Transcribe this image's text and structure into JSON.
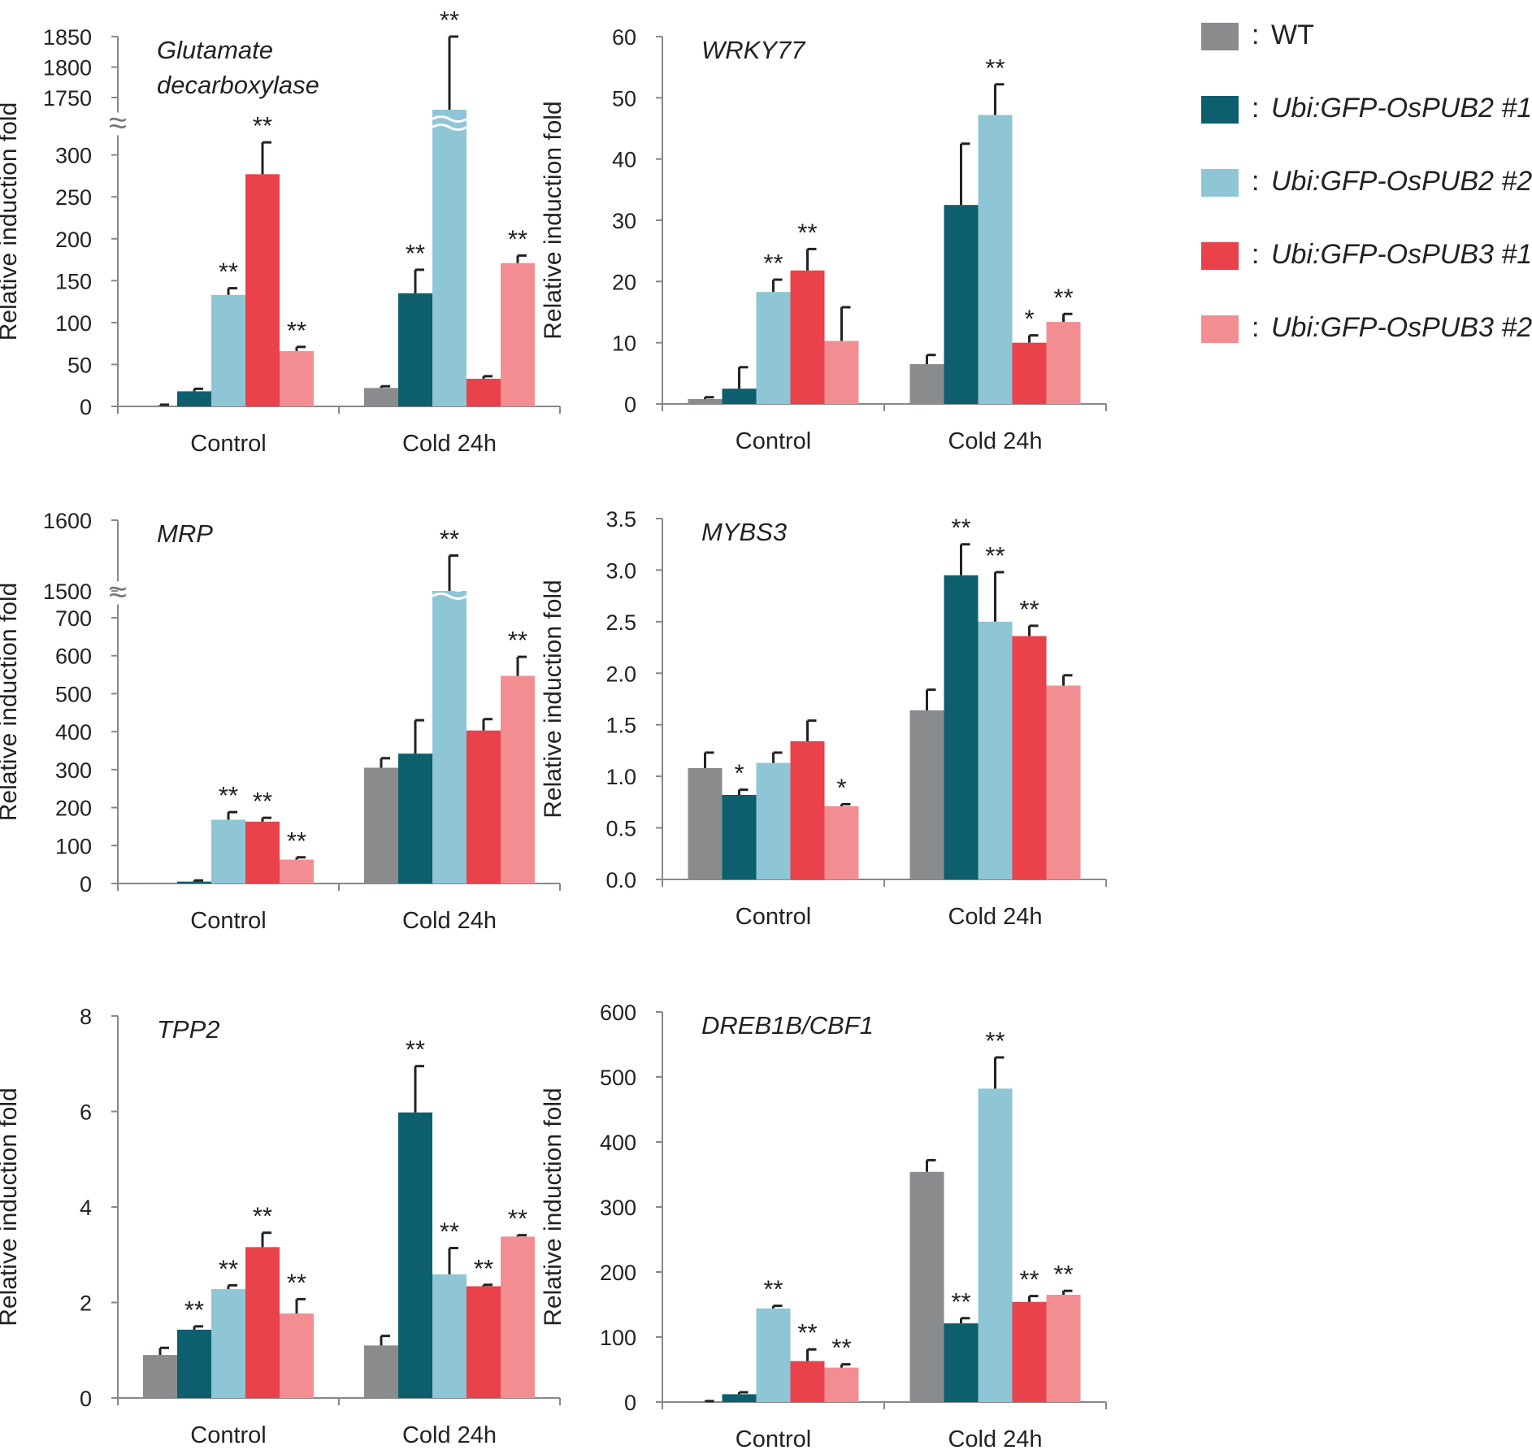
{
  "legend": {
    "colon": ":",
    "items": [
      {
        "label": "WT",
        "italic": false,
        "color": "#8a8b8d"
      },
      {
        "label": "Ubi:GFP-OsPUB2 #1",
        "italic": true,
        "color": "#0e5f6e"
      },
      {
        "label": "Ubi:GFP-OsPUB2 #2",
        "italic": true,
        "color": "#8ec6d6"
      },
      {
        "label": "Ubi:GFP-OsPUB3 #1",
        "italic": true,
        "color": "#e9424a"
      },
      {
        "label": "Ubi:GFP-OsPUB3 #2",
        "italic": true,
        "color": "#f28e92"
      }
    ]
  },
  "break_symbol": "≈",
  "chart_data": [
    {
      "type": "bar",
      "title": "Glutamate decarboxylase",
      "title_lines": [
        "Glutamate",
        "decarboxylase"
      ],
      "ylabel": "Relative induction fold",
      "xlabel": "",
      "categories": [
        "Control",
        "Cold 24h"
      ],
      "ylim": [
        0,
        1850
      ],
      "axis_break": [
        320,
        1730
      ],
      "yticks": [
        0,
        50,
        100,
        150,
        200,
        250,
        300,
        1750,
        1800,
        1850
      ],
      "series": [
        {
          "name": "WT",
          "values": [
            1,
            22
          ],
          "errors": [
            1,
            2
          ],
          "sig": [
            "",
            ""
          ]
        },
        {
          "name": "Ubi:GFP-OsPUB2 #1",
          "values": [
            18,
            135
          ],
          "errors": [
            3,
            28
          ],
          "sig": [
            "",
            "**"
          ]
        },
        {
          "name": "Ubi:GFP-OsPUB2 #2",
          "values": [
            133,
            1730
          ],
          "errors": [
            8,
            120
          ],
          "sig": [
            "**",
            "**"
          ]
        },
        {
          "name": "Ubi:GFP-OsPUB3 #1",
          "values": [
            277,
            33
          ],
          "errors": [
            38,
            3
          ],
          "sig": [
            "**",
            ""
          ]
        },
        {
          "name": "Ubi:GFP-OsPUB3 #2",
          "values": [
            66,
            171
          ],
          "errors": [
            5,
            9
          ],
          "sig": [
            "**",
            "**"
          ]
        }
      ]
    },
    {
      "type": "bar",
      "title": "WRKY77",
      "title_lines": [
        "WRKY77"
      ],
      "ylabel": "Relative induction fold",
      "xlabel": "",
      "categories": [
        "Control",
        "Cold 24h"
      ],
      "ylim": [
        0,
        60
      ],
      "yticks": [
        0,
        10,
        20,
        30,
        40,
        50,
        60
      ],
      "series": [
        {
          "name": "WT",
          "values": [
            0.8,
            6.5
          ],
          "errors": [
            0.3,
            1.5
          ],
          "sig": [
            "",
            ""
          ]
        },
        {
          "name": "Ubi:GFP-OsPUB2 #1",
          "values": [
            2.5,
            32.5
          ],
          "errors": [
            3.5,
            10
          ],
          "sig": [
            "",
            ""
          ]
        },
        {
          "name": "Ubi:GFP-OsPUB2 #2",
          "values": [
            18.3,
            47.2
          ],
          "errors": [
            2,
            5
          ],
          "sig": [
            "**",
            "**"
          ]
        },
        {
          "name": "Ubi:GFP-OsPUB3 #1",
          "values": [
            21.8,
            10
          ],
          "errors": [
            3.5,
            1.2
          ],
          "sig": [
            "**",
            "*"
          ]
        },
        {
          "name": "Ubi:GFP-OsPUB3 #2",
          "values": [
            10.3,
            13.4
          ],
          "errors": [
            5.5,
            1.3
          ],
          "sig": [
            "",
            "**"
          ]
        }
      ]
    },
    {
      "type": "bar",
      "title": "MRP",
      "title_lines": [
        "MRP"
      ],
      "ylabel": "Relative induction fold",
      "xlabel": "",
      "categories": [
        "Control",
        "Cold 24h"
      ],
      "ylim": [
        0,
        1600
      ],
      "axis_break": [
        760,
        1500
      ],
      "yticks": [
        0,
        100,
        200,
        300,
        400,
        500,
        600,
        700,
        1500,
        1600
      ],
      "series": [
        {
          "name": "WT",
          "values": [
            0,
            305
          ],
          "errors": [
            0,
            25
          ],
          "sig": [
            "",
            ""
          ]
        },
        {
          "name": "Ubi:GFP-OsPUB2 #1",
          "values": [
            5,
            342
          ],
          "errors": [
            3,
            88
          ],
          "sig": [
            "",
            ""
          ]
        },
        {
          "name": "Ubi:GFP-OsPUB2 #2",
          "values": [
            168,
            1500
          ],
          "errors": [
            20,
            50
          ],
          "sig": [
            "**",
            "**"
          ]
        },
        {
          "name": "Ubi:GFP-OsPUB3 #1",
          "values": [
            163,
            403
          ],
          "errors": [
            10,
            30
          ],
          "sig": [
            "**",
            ""
          ]
        },
        {
          "name": "Ubi:GFP-OsPUB3 #2",
          "values": [
            63,
            547
          ],
          "errors": [
            6,
            50
          ],
          "sig": [
            "**",
            "**"
          ]
        }
      ]
    },
    {
      "type": "bar",
      "title": "MYBS3",
      "title_lines": [
        "MYBS3"
      ],
      "ylabel": "Relative induction fold",
      "xlabel": "",
      "categories": [
        "Control",
        "Cold 24h"
      ],
      "ylim": [
        0,
        3.5
      ],
      "yticks": [
        0.0,
        0.5,
        1.0,
        1.5,
        2.0,
        2.5,
        3.0,
        3.5
      ],
      "tick_decimals": 1,
      "series": [
        {
          "name": "WT",
          "values": [
            1.08,
            1.64
          ],
          "errors": [
            0.15,
            0.2
          ],
          "sig": [
            "",
            ""
          ]
        },
        {
          "name": "Ubi:GFP-OsPUB2 #1",
          "values": [
            0.82,
            2.95
          ],
          "errors": [
            0.05,
            0.3
          ],
          "sig": [
            "*",
            "**"
          ]
        },
        {
          "name": "Ubi:GFP-OsPUB2 #2",
          "values": [
            1.13,
            2.5
          ],
          "errors": [
            0.1,
            0.48
          ],
          "sig": [
            "",
            "**"
          ]
        },
        {
          "name": "Ubi:GFP-OsPUB3 #1",
          "values": [
            1.34,
            2.36
          ],
          "errors": [
            0.2,
            0.1
          ],
          "sig": [
            "",
            "**"
          ]
        },
        {
          "name": "Ubi:GFP-OsPUB3 #2",
          "values": [
            0.71,
            1.88
          ],
          "errors": [
            0.02,
            0.1
          ],
          "sig": [
            "*",
            ""
          ]
        }
      ]
    },
    {
      "type": "bar",
      "title": "TPP2",
      "title_lines": [
        "TPP2"
      ],
      "ylabel": "Relative induction fold",
      "xlabel": "",
      "categories": [
        "Control",
        "Cold 24h"
      ],
      "ylim": [
        0,
        8
      ],
      "yticks": [
        0,
        2,
        4,
        6,
        8
      ],
      "series": [
        {
          "name": "WT",
          "values": [
            0.9,
            1.1
          ],
          "errors": [
            0.15,
            0.2
          ],
          "sig": [
            "",
            ""
          ]
        },
        {
          "name": "Ubi:GFP-OsPUB2 #1",
          "values": [
            1.43,
            5.98
          ],
          "errors": [
            0.07,
            0.97
          ],
          "sig": [
            "**",
            "**"
          ]
        },
        {
          "name": "Ubi:GFP-OsPUB2 #2",
          "values": [
            2.28,
            2.59
          ],
          "errors": [
            0.08,
            0.55
          ],
          "sig": [
            "**",
            "**"
          ]
        },
        {
          "name": "Ubi:GFP-OsPUB3 #1",
          "values": [
            3.16,
            2.34
          ],
          "errors": [
            0.3,
            0.03
          ],
          "sig": [
            "**",
            "**"
          ]
        },
        {
          "name": "Ubi:GFP-OsPUB3 #2",
          "values": [
            1.77,
            3.38
          ],
          "errors": [
            0.3,
            0.03
          ],
          "sig": [
            "**",
            "**"
          ]
        }
      ]
    },
    {
      "type": "bar",
      "title": "DREB1B/CBF1",
      "title_lines": [
        "DREB1B/CBF1"
      ],
      "ylabel": "Relative induction fold",
      "xlabel": "",
      "categories": [
        "Control",
        "Cold 24h"
      ],
      "ylim": [
        0,
        600
      ],
      "yticks": [
        0,
        100,
        200,
        300,
        400,
        500,
        600
      ],
      "series": [
        {
          "name": "WT",
          "values": [
            1,
            354
          ],
          "errors": [
            0.5,
            18
          ],
          "sig": [
            "",
            ""
          ]
        },
        {
          "name": "Ubi:GFP-OsPUB2 #1",
          "values": [
            12,
            121
          ],
          "errors": [
            3,
            8
          ],
          "sig": [
            "",
            "**"
          ]
        },
        {
          "name": "Ubi:GFP-OsPUB2 #2",
          "values": [
            144,
            482
          ],
          "errors": [
            4,
            48
          ],
          "sig": [
            "**",
            "**"
          ]
        },
        {
          "name": "Ubi:GFP-OsPUB3 #1",
          "values": [
            63,
            154
          ],
          "errors": [
            18,
            9
          ],
          "sig": [
            "**",
            "**"
          ]
        },
        {
          "name": "Ubi:GFP-OsPUB3 #2",
          "values": [
            53,
            165
          ],
          "errors": [
            5,
            6
          ],
          "sig": [
            "**",
            "**"
          ]
        }
      ]
    }
  ]
}
